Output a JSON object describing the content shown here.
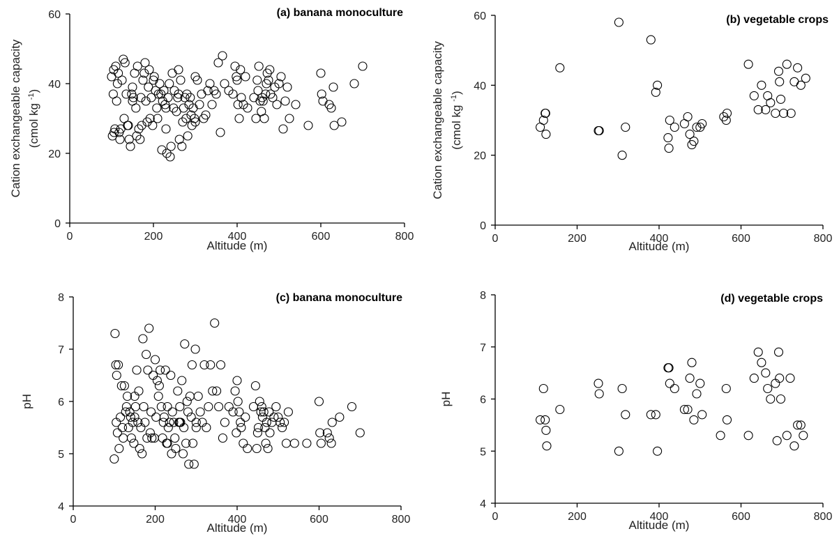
{
  "chart_data": [
    {
      "type": "scatter",
      "title": "(a) banana monoculture",
      "xlabel": "Altitude (m)",
      "ylabel_line1": "Cation exchangeable capacity",
      "ylabel_line2": "(cmol kg",
      "ylabel_sup": "-1",
      "ylabel_close": ")",
      "xlim": [
        0,
        800
      ],
      "ylim": [
        0,
        60
      ],
      "xticks": [
        0,
        200,
        400,
        600,
        800
      ],
      "yticks": [
        0,
        20,
        40,
        60
      ],
      "marker": "open-circle",
      "grid": false,
      "x": [
        100,
        102,
        104,
        105,
        106,
        108,
        110,
        112,
        114,
        116,
        118,
        120,
        122,
        125,
        128,
        130,
        132,
        135,
        138,
        140,
        142,
        145,
        148,
        150,
        152,
        155,
        158,
        160,
        162,
        165,
        168,
        170,
        172,
        175,
        178,
        180,
        182,
        185,
        188,
        190,
        192,
        195,
        198,
        200,
        202,
        205,
        208,
        210,
        212,
        215,
        218,
        220,
        222,
        225,
        228,
        230,
        232,
        235,
        238,
        240,
        242,
        245,
        248,
        250,
        255,
        258,
        260,
        262,
        265,
        268,
        270,
        272,
        275,
        278,
        280,
        282,
        285,
        288,
        290,
        292,
        295,
        298,
        300,
        305,
        310,
        315,
        320,
        325,
        330,
        335,
        340,
        345,
        350,
        355,
        360,
        365,
        370,
        380,
        390,
        395,
        398,
        400,
        402,
        405,
        408,
        410,
        415,
        420,
        425,
        440,
        445,
        448,
        450,
        452,
        455,
        458,
        460,
        462,
        465,
        468,
        470,
        472,
        475,
        478,
        480,
        485,
        490,
        495,
        500,
        505,
        510,
        515,
        520,
        525,
        540,
        570,
        600,
        602,
        605,
        620,
        625,
        630,
        632,
        650,
        680,
        700,
        300,
        150,
        230,
        260
      ],
      "y": [
        42,
        25,
        37,
        44,
        26,
        27,
        45,
        35,
        40,
        43,
        26,
        24,
        27,
        41,
        47,
        30,
        46,
        37,
        28,
        28,
        24,
        22,
        37,
        39,
        36,
        43,
        33,
        25,
        45,
        27,
        24,
        36,
        28,
        41,
        43,
        46,
        35,
        29,
        39,
        44,
        30,
        36,
        28,
        41,
        42,
        38,
        33,
        30,
        37,
        40,
        37,
        21,
        35,
        38,
        34,
        33,
        20,
        36,
        40,
        19,
        22,
        43,
        33,
        38,
        32,
        36,
        37,
        24,
        41,
        22,
        29,
        33,
        36,
        30,
        37,
        25,
        34,
        36,
        31,
        28,
        33,
        30,
        29,
        41,
        34,
        37,
        30,
        31,
        38,
        40,
        34,
        38,
        37,
        46,
        26,
        48,
        40,
        38,
        37,
        45,
        42,
        41,
        34,
        30,
        44,
        36,
        34,
        42,
        33,
        36,
        30,
        41,
        38,
        45,
        35,
        32,
        36,
        35,
        30,
        37,
        40,
        43,
        41,
        44,
        37,
        36,
        39,
        34,
        40,
        42,
        27,
        35,
        39,
        30,
        34,
        28,
        43,
        37,
        35,
        34,
        33,
        39,
        28,
        29,
        40,
        45,
        42,
        35,
        27,
        44
      ],
      "series_color": "#000000"
    },
    {
      "type": "scatter",
      "title": "(b) vegetable crops",
      "xlabel": "Altitude (m)",
      "ylabel_line1": "Cation exchangeable capacity",
      "ylabel_line2": "(cmol kg",
      "ylabel_sup": "-1",
      "ylabel_close": ")",
      "xlim": [
        0,
        800
      ],
      "ylim": [
        0,
        60
      ],
      "xticks": [
        0,
        200,
        400,
        600,
        800
      ],
      "yticks": [
        0,
        20,
        40,
        60
      ],
      "marker": "open-circle",
      "grid": false,
      "x": [
        110,
        118,
        122,
        123,
        124,
        158,
        252,
        254,
        302,
        310,
        318,
        380,
        392,
        396,
        422,
        424,
        426,
        438,
        462,
        470,
        475,
        480,
        485,
        492,
        500,
        505,
        558,
        564,
        566,
        618,
        632,
        642,
        650,
        660,
        665,
        672,
        684,
        692,
        694,
        697,
        704,
        712,
        722,
        730,
        738,
        746,
        758
      ],
      "y": [
        28,
        30,
        32,
        32,
        26,
        45,
        27,
        27,
        58,
        20,
        28,
        53,
        38,
        40,
        25,
        22,
        30,
        28,
        29,
        31,
        26,
        23,
        24,
        28,
        28,
        29,
        31,
        30,
        32,
        46,
        37,
        33,
        40,
        33,
        37,
        35,
        32,
        44,
        41,
        36,
        32,
        46,
        32,
        41,
        45,
        40,
        42
      ],
      "series_color": "#000000"
    },
    {
      "type": "scatter",
      "title": "(c) banana monoculture",
      "xlabel": "Altitude (m)",
      "ylabel": "pH",
      "xlim": [
        0,
        800
      ],
      "ylim": [
        4,
        8
      ],
      "xticks": [
        0,
        200,
        400,
        600,
        800
      ],
      "yticks": [
        4,
        5,
        6,
        7,
        8
      ],
      "marker": "open-circle",
      "grid": false,
      "x": [
        100,
        102,
        104,
        105,
        106,
        108,
        110,
        112,
        115,
        118,
        120,
        122,
        125,
        128,
        130,
        132,
        135,
        138,
        140,
        142,
        145,
        148,
        150,
        152,
        155,
        158,
        160,
        162,
        165,
        168,
        170,
        172,
        175,
        178,
        180,
        182,
        185,
        188,
        190,
        192,
        195,
        198,
        200,
        202,
        205,
        208,
        210,
        212,
        215,
        218,
        220,
        222,
        225,
        228,
        230,
        232,
        235,
        238,
        240,
        242,
        245,
        248,
        250,
        255,
        258,
        260,
        262,
        265,
        268,
        270,
        272,
        275,
        278,
        280,
        282,
        285,
        288,
        290,
        292,
        295,
        298,
        300,
        305,
        310,
        315,
        320,
        325,
        330,
        335,
        340,
        345,
        350,
        355,
        360,
        365,
        370,
        380,
        390,
        395,
        398,
        400,
        402,
        405,
        408,
        410,
        415,
        420,
        425,
        440,
        445,
        448,
        450,
        452,
        455,
        458,
        460,
        462,
        465,
        468,
        470,
        472,
        475,
        478,
        480,
        485,
        490,
        495,
        500,
        505,
        510,
        515,
        520,
        525,
        540,
        570,
        600,
        602,
        605,
        620,
        625,
        630,
        632,
        650,
        680,
        700,
        300,
        150,
        230,
        260
      ],
      "y": [
        4.9,
        7.3,
        6.7,
        5.6,
        6.5,
        5.4,
        6.7,
        5.1,
        5.7,
        6.3,
        5.5,
        5.3,
        6.3,
        5.8,
        5.9,
        6.1,
        5.5,
        5.8,
        5.7,
        5.3,
        5.6,
        5.2,
        6.1,
        5.9,
        6.6,
        5.6,
        6.2,
        5.1,
        5.5,
        5.0,
        7.2,
        5.9,
        5.6,
        6.9,
        5.3,
        6.6,
        7.4,
        5.4,
        5.8,
        5.3,
        6.5,
        5.3,
        6.8,
        5.7,
        6.4,
        6.1,
        6.3,
        6.6,
        5.9,
        5.3,
        5.6,
        5.7,
        6.6,
        5.2,
        5.9,
        5.5,
        5.6,
        6.5,
        5.0,
        5.8,
        5.6,
        5.3,
        5.1,
        6.2,
        5.6,
        5.9,
        5.6,
        6.4,
        5.0,
        5.5,
        7.1,
        5.2,
        6.0,
        5.8,
        4.8,
        6.1,
        5.7,
        6.7,
        5.2,
        4.8,
        7.0,
        5.5,
        6.1,
        5.8,
        5.6,
        6.7,
        5.5,
        5.9,
        6.7,
        6.2,
        7.5,
        6.2,
        5.9,
        6.7,
        5.3,
        5.6,
        5.9,
        5.8,
        6.2,
        5.4,
        6.4,
        6.0,
        5.8,
        5.6,
        5.5,
        5.2,
        5.7,
        5.1,
        5.9,
        6.3,
        5.1,
        5.4,
        5.5,
        6.0,
        5.8,
        5.9,
        5.7,
        5.8,
        5.5,
        5.2,
        5.6,
        5.1,
        5.8,
        5.4,
        5.6,
        5.7,
        5.9,
        5.7,
        5.6,
        5.5,
        5.6,
        5.2,
        5.8,
        5.2,
        5.2,
        6.0,
        5.4,
        5.2,
        5.4,
        5.3,
        5.2,
        5.6,
        5.7,
        5.9,
        5.4,
        5.6,
        5.7,
        5.2,
        5.6
      ],
      "series_color": "#000000"
    },
    {
      "type": "scatter",
      "title": "(d) vegetable crops",
      "xlabel": "Altitude (m)",
      "ylabel": "pH",
      "xlim": [
        0,
        800
      ],
      "ylim": [
        4,
        8
      ],
      "xticks": [
        0,
        200,
        400,
        600,
        800
      ],
      "yticks": [
        4,
        5,
        6,
        7,
        8
      ],
      "marker": "open-circle",
      "grid": false,
      "x": [
        110,
        118,
        122,
        124,
        126,
        158,
        252,
        254,
        302,
        310,
        318,
        380,
        392,
        396,
        422,
        424,
        426,
        438,
        462,
        470,
        475,
        480,
        485,
        492,
        500,
        505,
        550,
        564,
        566,
        618,
        632,
        642,
        650,
        660,
        665,
        672,
        684,
        688,
        692,
        694,
        697,
        712,
        720,
        730,
        738,
        746,
        752
      ],
      "y": [
        5.6,
        6.2,
        5.6,
        5.4,
        5.1,
        5.8,
        6.3,
        6.1,
        5.0,
        6.2,
        5.7,
        5.7,
        5.7,
        5.0,
        6.6,
        6.6,
        6.3,
        6.2,
        5.8,
        5.8,
        6.4,
        6.7,
        5.6,
        6.1,
        6.3,
        5.7,
        5.3,
        6.2,
        5.6,
        5.3,
        6.4,
        6.9,
        6.7,
        6.5,
        6.2,
        6.0,
        6.3,
        5.2,
        6.9,
        6.4,
        6.0,
        5.3,
        6.4,
        5.1,
        5.5,
        5.5,
        5.3
      ],
      "series_color": "#000000"
    }
  ]
}
